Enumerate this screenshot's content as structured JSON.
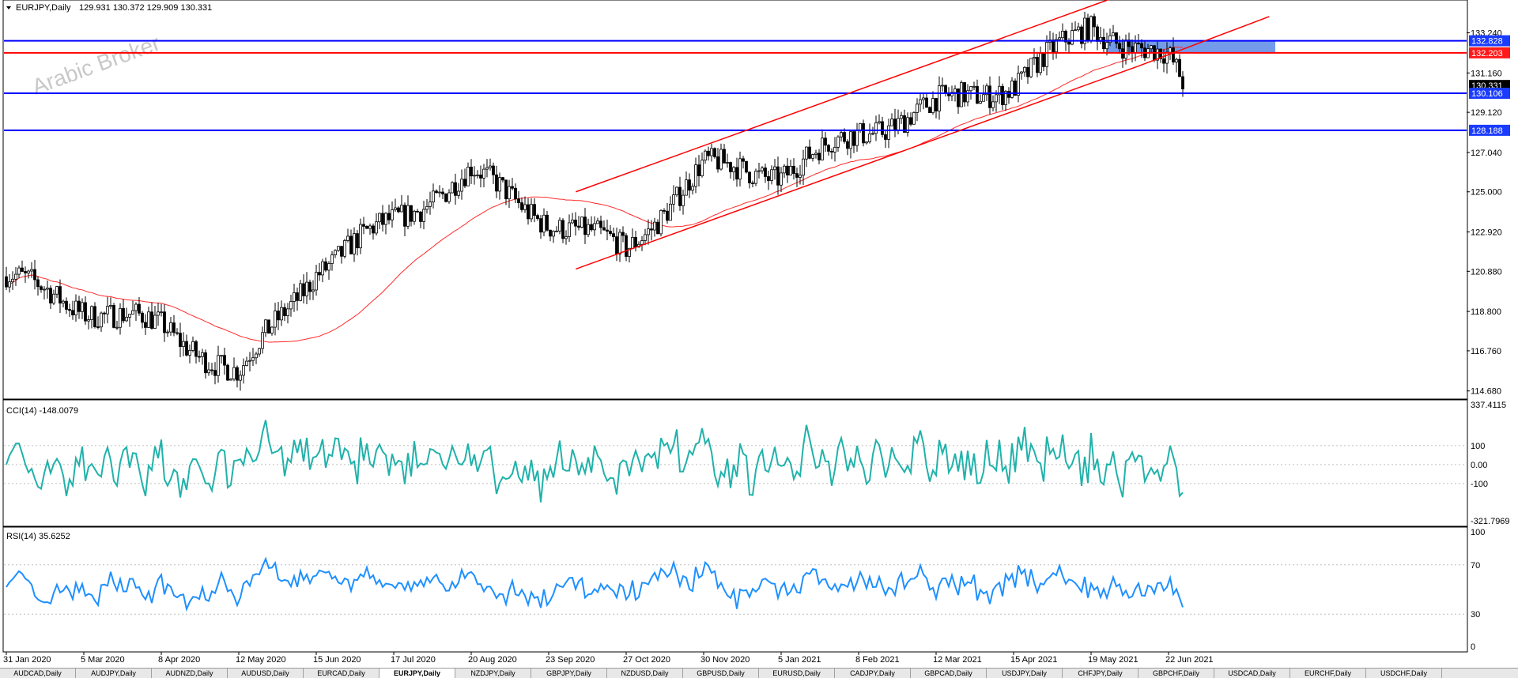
{
  "header": {
    "symbol_label": "EURJPY,Daily",
    "ohlc": "129.931 130.372 129.909 130.331"
  },
  "watermark": "Arabic Broker",
  "colors": {
    "up_candle": "#000000",
    "ma_line": "#ff2a2a",
    "channel": "#ff0000",
    "support_blue": "#0000ff",
    "resistance_red": "#ff0000",
    "zone": "#5a8ae6",
    "cci_line": "#20b2aa",
    "rsi_line": "#1e90ff",
    "price_tag_blue": "#1a3cff",
    "price_tag_red": "#ff1a1a",
    "price_tag_dark": "#000000"
  },
  "chart_data": [
    {
      "type": "candlestick",
      "title": "EURJPY,Daily",
      "y_ticks": [
        "133.240",
        "131.160",
        "129.120",
        "127.040",
        "125.000",
        "122.920",
        "120.880",
        "118.800",
        "116.760",
        "114.680"
      ],
      "ylim": [
        114.3,
        134.9
      ],
      "x_ticks": [
        "31 Jan 2020",
        "5 Mar 2020",
        "8 Apr 2020",
        "12 May 2020",
        "15 Jun 2020",
        "17 Jul 2020",
        "20 Aug 2020",
        "23 Sep 2020",
        "27 Oct 2020",
        "30 Nov 2020",
        "5 Jan 2021",
        "8 Feb 2021",
        "12 Mar 2021",
        "15 Apr 2021",
        "19 May 2021",
        "22 Jun 2021"
      ],
      "price_path_anchors": [
        {
          "date": "31 Jan 2020",
          "price": 120.6
        },
        {
          "date": "5 Mar 2020",
          "price": 119.0
        },
        {
          "date": "8 Apr 2020",
          "price": 118.0
        },
        {
          "date": "12 May 2020",
          "price": 115.5
        },
        {
          "date": "15 Jun 2020",
          "price": 121.0
        },
        {
          "date": "17 Jul 2020",
          "price": 123.5
        },
        {
          "date": "20 Aug 2020",
          "price": 126.0
        },
        {
          "date": "23 Sep 2020",
          "price": 123.5
        },
        {
          "date": "27 Oct 2020",
          "price": 122.0
        },
        {
          "date": "30 Nov 2020",
          "price": 126.3
        },
        {
          "date": "5 Jan 2021",
          "price": 126.0
        },
        {
          "date": "8 Feb 2021",
          "price": 128.0
        },
        {
          "date": "12 Mar 2021",
          "price": 129.5
        },
        {
          "date": "15 Apr 2021",
          "price": 130.6
        },
        {
          "date": "19 May 2021",
          "price": 133.6
        },
        {
          "date": "22 Jun 2021",
          "price": 131.8
        },
        {
          "date": "last",
          "price": 130.331
        }
      ],
      "moving_average": "red trend line lagging price",
      "horizontal_levels": [
        {
          "price": 132.828,
          "label": "132.828",
          "color": "blue"
        },
        {
          "price": 132.203,
          "label": "132.203",
          "color": "red"
        },
        {
          "price": 130.106,
          "label": "130.106",
          "color": "blue"
        },
        {
          "price": 128.188,
          "label": "128.188",
          "color": "blue"
        }
      ],
      "current_price_tag": "130.331",
      "channel": "ascending channel, two parallel red trendlines",
      "zone": {
        "from_price": 132.203,
        "to_price": 132.828,
        "label": "resistance zone"
      }
    },
    {
      "type": "line",
      "title": "CCI(14) -148.0079",
      "series_name": "CCI(14)",
      "last_value": -148.0079,
      "y_ticks": [
        "337.4115",
        "100",
        "0.00",
        "-100",
        "-321.7969"
      ],
      "ylim": [
        -321.7969,
        337.4115
      ],
      "levels": [
        100,
        0,
        -100
      ]
    },
    {
      "type": "line",
      "title": "RSI(14) 35.6252",
      "series_name": "RSI(14)",
      "last_value": 35.6252,
      "y_ticks": [
        "100",
        "70",
        "30",
        "0"
      ],
      "ylim": [
        0,
        100
      ],
      "levels": [
        70,
        30
      ]
    }
  ],
  "tabs": {
    "active_index": 5,
    "items": [
      "AUDCAD,Daily",
      "AUDJPY,Daily",
      "AUDNZD,Daily",
      "AUDUSD,Daily",
      "EURCAD,Daily",
      "EURJPY,Daily",
      "NZDJPY,Daily",
      "GBPJPY,Daily",
      "NZDUSD,Daily",
      "GBPUSD,Daily",
      "EURUSD,Daily",
      "CADJPY,Daily",
      "GBPCAD,Daily",
      "USDJPY,Daily",
      "CHFJPY,Daily",
      "GBPCHF,Daily",
      "USDCAD,Daily",
      "EURCHF,Daily",
      "USDCHF,Daily"
    ]
  }
}
